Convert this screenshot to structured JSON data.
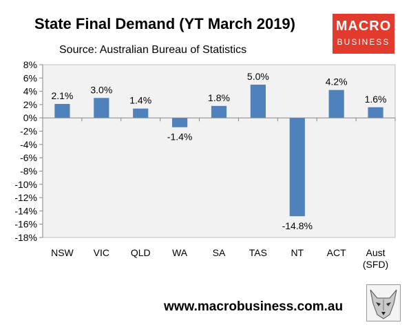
{
  "chart_data": {
    "type": "bar",
    "title": "State Final Demand (YT March 2019)",
    "subtitle": "Source: Australian Bureau of Statistics",
    "categories": [
      "NSW",
      "VIC",
      "QLD",
      "WA",
      "SA",
      "TAS",
      "NT",
      "ACT",
      [
        "Aust",
        "(SFD)"
      ]
    ],
    "values": [
      2.1,
      3.0,
      1.4,
      -1.4,
      1.8,
      5.0,
      -14.8,
      4.2,
      1.6
    ],
    "value_labels": [
      "2.1%",
      "3.0%",
      "1.4%",
      "-1.4%",
      "1.8%",
      "5.0%",
      "-14.8%",
      "4.2%",
      "1.6%"
    ],
    "ylim": [
      -18,
      8
    ],
    "yticks": [
      8,
      6,
      4,
      2,
      0,
      -2,
      -4,
      -6,
      -8,
      -10,
      -12,
      -14,
      -16,
      -18
    ],
    "ytick_labels": [
      "8%",
      "6%",
      "4%",
      "2%",
      "0%",
      "-2%",
      "-4%",
      "-6%",
      "-8%",
      "-10%",
      "-12%",
      "-14%",
      "-16%",
      "-18%"
    ],
    "xlabel": "",
    "ylabel": "",
    "grid": false,
    "bar_color": "#4f81bd",
    "plot_background": "#f2f2f2"
  },
  "branding": {
    "logo_line1": "MACRO",
    "logo_line2": "BUSINESS",
    "logo_color": "#e23b2d",
    "website": "www.macrobusiness.com.au",
    "mascot_icon": "wolf-icon"
  }
}
